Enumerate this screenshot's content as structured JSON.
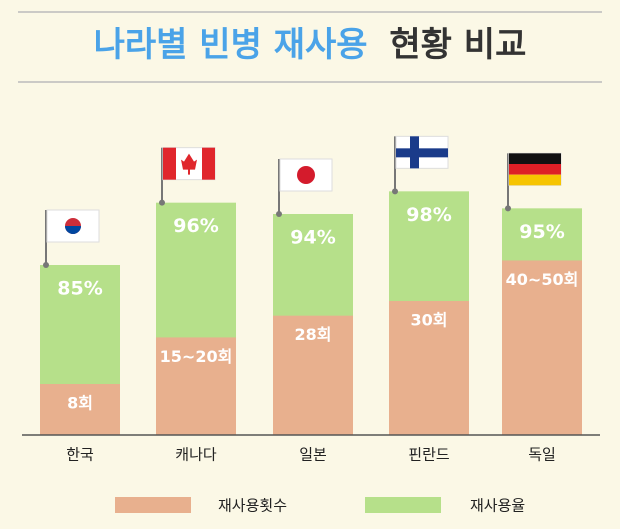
{
  "chart_data": {
    "type": "bar",
    "title_highlight": "나라별 빈병 재사용",
    "title_rest": "현황 비교",
    "categories": [
      "한국",
      "캐나다",
      "일본",
      "핀란드",
      "독일"
    ],
    "ylim": [
      55,
      100
    ],
    "series": [
      {
        "name": "재사용횟수",
        "color": "#e8b08e",
        "labels": [
          "8회",
          "15~20회",
          "28회",
          "30회",
          "40~50회"
        ]
      },
      {
        "name": "재사용율",
        "color": "#b6e08a",
        "values": [
          85,
          96,
          94,
          98,
          95
        ],
        "value_labels": [
          "85%",
          "96%",
          "94%",
          "98%",
          "95%"
        ]
      }
    ]
  }
}
